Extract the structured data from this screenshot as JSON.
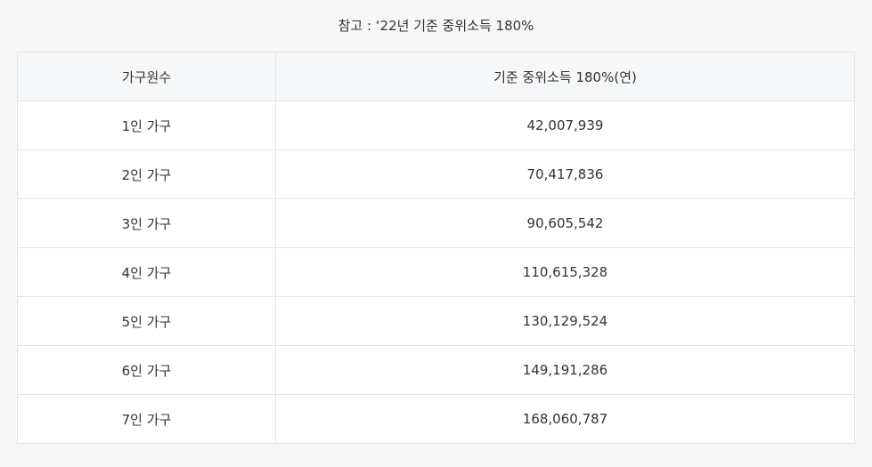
{
  "caption": "참고 : ‘22년 기준 중위소득 180%",
  "table": {
    "headers": [
      "가구원수",
      "기준 중위소득 180%(연)"
    ],
    "rows": [
      [
        "1인 가구",
        "42,007,939"
      ],
      [
        "2인 가구",
        "70,417,836"
      ],
      [
        "3인 가구",
        "90,605,542"
      ],
      [
        "4인 가구",
        "110,615,328"
      ],
      [
        "5인 가구",
        "130,129,524"
      ],
      [
        "6인 가구",
        "149,191,286"
      ],
      [
        "7인 가구",
        "168,060,787"
      ]
    ]
  }
}
